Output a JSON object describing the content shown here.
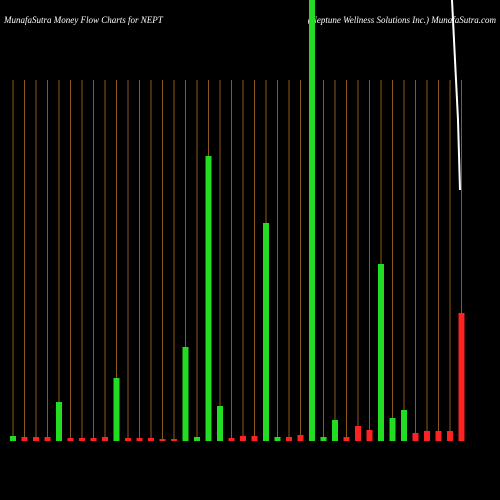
{
  "chart_data": {
    "type": "bar",
    "title": "MunafaSutra  Money Flow  Charts for NEPT",
    "subtitle": "(Neptune   Wellness Solutions Inc.) MunafaSutra.com",
    "categories": [
      null,
      null,
      null,
      null,
      null,
      null,
      null,
      null,
      null,
      null,
      null,
      null,
      null,
      null,
      null,
      null,
      null,
      null,
      null,
      null,
      null,
      null,
      null,
      null,
      null,
      null,
      null,
      null,
      null,
      null,
      null,
      null,
      null,
      null,
      null,
      null,
      null,
      null,
      null,
      null
    ],
    "values": [
      5,
      4,
      4,
      4,
      39,
      3,
      3,
      3,
      4,
      63,
      3,
      3,
      3,
      2,
      2,
      94,
      4,
      285,
      35,
      3,
      5,
      5,
      218,
      4,
      4,
      6,
      441,
      4,
      21,
      4,
      15,
      11,
      177,
      23,
      31,
      8,
      10,
      10,
      10,
      128
    ],
    "colors": [
      "#22dd22",
      "#ff2222",
      "#ff2222",
      "#ff2222",
      "#22dd22",
      "#ff2222",
      "#ff2222",
      "#ff2222",
      "#ff2222",
      "#22dd22",
      "#ff2222",
      "#ff2222",
      "#ff2222",
      "#ff2222",
      "#ff2222",
      "#22dd22",
      "#22dd22",
      "#22dd22",
      "#22dd22",
      "#ff2222",
      "#ff2222",
      "#ff2222",
      "#22dd22",
      "#22dd22",
      "#ff2222",
      "#ff2222",
      "#22dd22",
      "#22dd22",
      "#22dd22",
      "#ff2222",
      "#ff2222",
      "#ff2222",
      "#22dd22",
      "#22dd22",
      "#22dd22",
      "#ff2222",
      "#ff2222",
      "#ff2222",
      "#ff2222",
      "#ff2222"
    ],
    "ylim": [
      0,
      441
    ]
  }
}
